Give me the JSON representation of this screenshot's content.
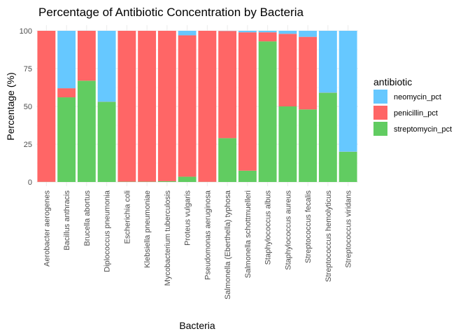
{
  "chart_data": {
    "type": "bar",
    "stacked": true,
    "title": "Percentage of Antibiotic Concentration by Bacteria",
    "xlabel": "Bacteria",
    "ylabel": "Percentage (%)",
    "ylim": [
      0,
      100
    ],
    "yticks": [
      0,
      25,
      50,
      75,
      100
    ],
    "grid": true,
    "legend": {
      "title": "antibiotic",
      "position": "right"
    },
    "categories": [
      "Aerobacter aerogenes",
      "Bacillus anthracis",
      "Brucella abortus",
      "Diplococcus pneumonia",
      "Escherichia coli",
      "Klebsiella pneumoniae",
      "Mycobacterium tuberculosis",
      "Proteus vulgaris",
      "Pseudomonas aeruginosa",
      "Salmonella (Eberthella) typhosa",
      "Salmonella schottmuelleri",
      "Staphylococcus albus",
      "Staphylococcus aureus",
      "Streptococcus fecalis",
      "Streptococcus hemolyticus",
      "Streptococcus viridans"
    ],
    "series": [
      {
        "name": "streptomycin_pct",
        "color": "#61CC61",
        "values": [
          0.1,
          56,
          67,
          53,
          0.2,
          0.2,
          0.5,
          3.5,
          0.1,
          29,
          7.5,
          93,
          50,
          48,
          59,
          20
        ]
      },
      {
        "name": "penicillin_pct",
        "color": "#FF6666",
        "values": [
          99.9,
          6,
          33,
          0.1,
          99.8,
          99.8,
          99.5,
          93.5,
          99.9,
          70.9,
          91.5,
          6,
          48,
          48,
          0.1,
          0.05
        ]
      },
      {
        "name": "neomycin_pct",
        "color": "#66C8FF",
        "values": [
          0.01,
          38,
          0.05,
          46.9,
          0.01,
          0.01,
          0.01,
          3,
          0.01,
          0.1,
          1,
          1,
          2,
          4,
          40.9,
          79.95
        ]
      }
    ],
    "legend_order": [
      "neomycin_pct",
      "penicillin_pct",
      "streptomycin_pct"
    ]
  }
}
